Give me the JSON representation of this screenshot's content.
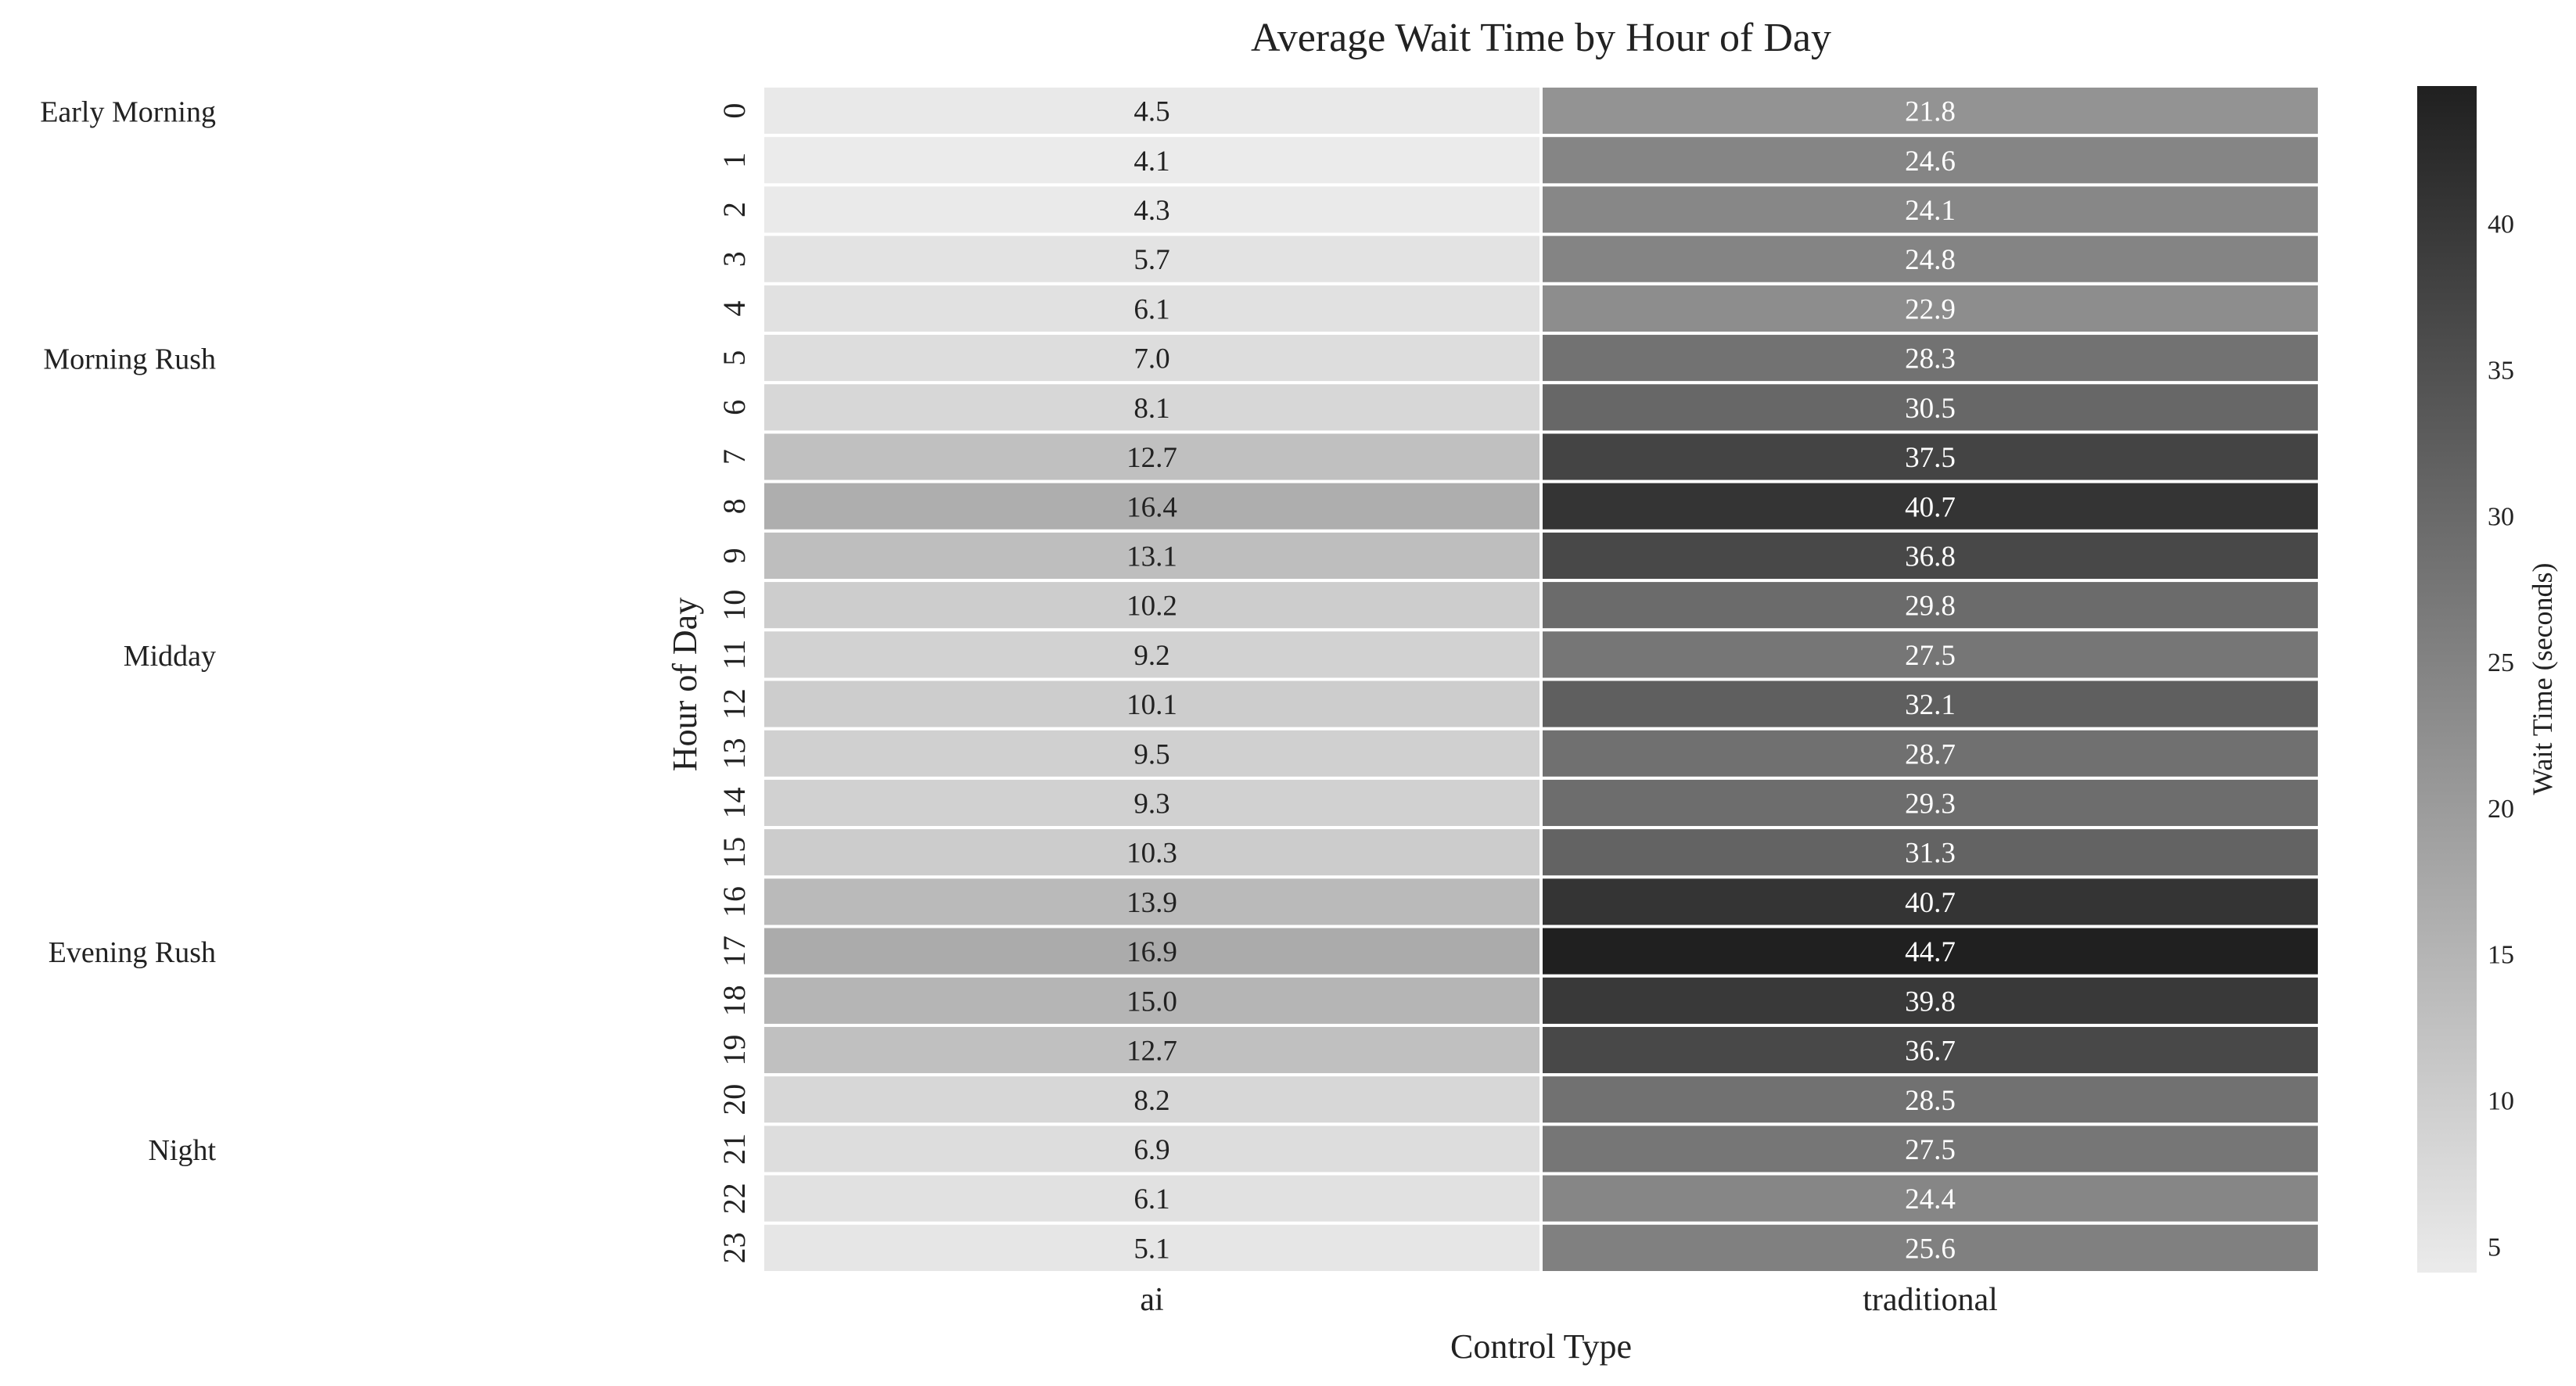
{
  "chart_data": {
    "type": "heatmap",
    "title": "Average Wait Time by Hour of Day",
    "xlabel": "Control Type",
    "ylabel": "Hour of Day",
    "columns": [
      "ai",
      "traditional"
    ],
    "rows": [
      "0",
      "1",
      "2",
      "3",
      "4",
      "5",
      "6",
      "7",
      "8",
      "9",
      "10",
      "11",
      "12",
      "13",
      "14",
      "15",
      "16",
      "17",
      "18",
      "19",
      "20",
      "21",
      "22",
      "23"
    ],
    "values": [
      [
        4.5,
        21.8
      ],
      [
        4.1,
        24.6
      ],
      [
        4.3,
        24.1
      ],
      [
        5.7,
        24.8
      ],
      [
        6.1,
        22.9
      ],
      [
        7.0,
        28.3
      ],
      [
        8.1,
        30.5
      ],
      [
        12.7,
        37.5
      ],
      [
        16.4,
        40.7
      ],
      [
        13.1,
        36.8
      ],
      [
        10.2,
        29.8
      ],
      [
        9.2,
        27.5
      ],
      [
        10.1,
        32.1
      ],
      [
        9.5,
        28.7
      ],
      [
        9.3,
        29.3
      ],
      [
        10.3,
        31.3
      ],
      [
        13.9,
        40.7
      ],
      [
        16.9,
        44.7
      ],
      [
        15.0,
        39.8
      ],
      [
        12.7,
        36.7
      ],
      [
        8.2,
        28.5
      ],
      [
        6.9,
        27.5
      ],
      [
        6.1,
        24.4
      ],
      [
        5.1,
        25.6
      ]
    ],
    "value_format": "0.0",
    "colorbar": {
      "label": "Wait Time (seconds)",
      "range": [
        4.1,
        44.7
      ],
      "ticks": [
        5,
        10,
        15,
        20,
        25,
        30,
        35,
        40
      ],
      "colormap": [
        "#ebebeb",
        "#202020"
      ]
    },
    "period_labels": [
      {
        "text": "Early Morning",
        "hour": 0
      },
      {
        "text": "Morning Rush",
        "hour": 5
      },
      {
        "text": "Midday",
        "hour": 11
      },
      {
        "text": "Evening Rush",
        "hour": 17
      },
      {
        "text": "Night",
        "hour": 21
      }
    ],
    "grid": false,
    "legend": "colorbar-right"
  }
}
